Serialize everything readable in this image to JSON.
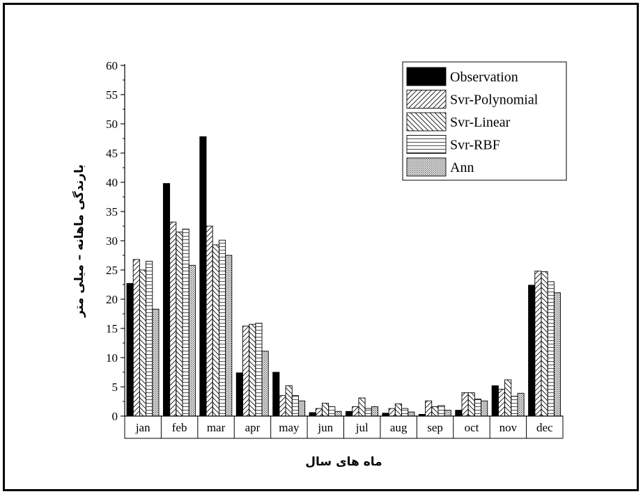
{
  "chart_data": {
    "type": "bar",
    "xlabel": "ماه های سال",
    "ylabel": "بارندگی ماهانه – میلی متر",
    "ylim": [
      0,
      60
    ],
    "yticks": [
      0,
      5,
      10,
      15,
      20,
      25,
      30,
      35,
      40,
      45,
      50,
      55,
      60
    ],
    "grid": false,
    "legend_position": "top-right",
    "categories": [
      "jan",
      "feb",
      "mar",
      "apr",
      "may",
      "jun",
      "jul",
      "aug",
      "sep",
      "oct",
      "nov",
      "dec"
    ],
    "series": [
      {
        "name": "Observation",
        "pattern": "solid",
        "values": [
          22.7,
          39.8,
          47.8,
          7.4,
          7.5,
          0.6,
          0.8,
          0.5,
          0.3,
          1.0,
          5.2,
          22.4
        ]
      },
      {
        "name": "Svr-Polynomial",
        "pattern": "diag-forward",
        "values": [
          26.8,
          33.2,
          32.5,
          15.4,
          3.5,
          1.3,
          1.6,
          1.3,
          2.6,
          4.0,
          4.6,
          24.8
        ]
      },
      {
        "name": "Svr-Linear",
        "pattern": "diag-back",
        "values": [
          25.0,
          31.5,
          29.3,
          15.7,
          5.2,
          2.2,
          3.1,
          2.1,
          1.6,
          4.0,
          6.2,
          24.7
        ]
      },
      {
        "name": "Svr-RBF",
        "pattern": "horizontal",
        "values": [
          26.5,
          32.0,
          30.1,
          15.9,
          3.5,
          1.6,
          1.3,
          1.3,
          1.8,
          2.9,
          3.4,
          23.0
        ]
      },
      {
        "name": "Ann",
        "pattern": "dots",
        "values": [
          18.3,
          25.8,
          27.5,
          11.1,
          2.6,
          0.8,
          1.6,
          0.7,
          1.0,
          2.6,
          3.9,
          21.1
        ]
      }
    ],
    "colors": {
      "bar_stroke": "#000000",
      "observation_fill": "#000000",
      "background": "#ffffff"
    }
  }
}
